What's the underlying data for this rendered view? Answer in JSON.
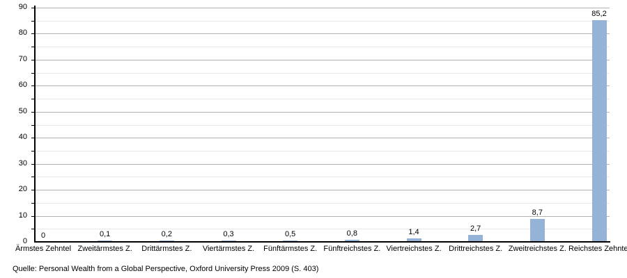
{
  "chart_data": {
    "type": "bar",
    "categories": [
      "Ärmstes Zehntel",
      "Zweitärmstes Z.",
      "Drittärmstes Z.",
      "Viertärmstes Z.",
      "Fünftärmstes Z.",
      "Fünftreichstes Z.",
      "Viertreichstes Z.",
      "Drittreichstes Z.",
      "Zweitreichstes Z.",
      "Reichstes Zehntel"
    ],
    "values": [
      0,
      0.1,
      0.2,
      0.3,
      0.5,
      0.8,
      1.4,
      2.7,
      8.7,
      85.2
    ],
    "value_labels": [
      "0",
      "0,1",
      "0,2",
      "0,3",
      "0,5",
      "0,8",
      "1,4",
      "2,7",
      "8,7",
      "85,2"
    ],
    "title": "",
    "xlabel": "",
    "ylabel": "",
    "ylim": [
      0,
      90
    ],
    "y_major_step": 10,
    "y_minor_step": 5,
    "y_tick_labels": [
      "0",
      "10",
      "20",
      "30",
      "40",
      "50",
      "60",
      "70",
      "80",
      "90"
    ],
    "grid": true,
    "legend": "none"
  },
  "source_note": "Quelle: Personal Wealth from a Global Perspective, Oxford University Press 2009 (S. 403)",
  "colors": {
    "bar_fill": "#95B3D7",
    "major_grid": "#b2b2b2",
    "minor_grid": "#e8e8e8",
    "axis": "#000000",
    "background": "#ffffff",
    "text": "#000000"
  }
}
